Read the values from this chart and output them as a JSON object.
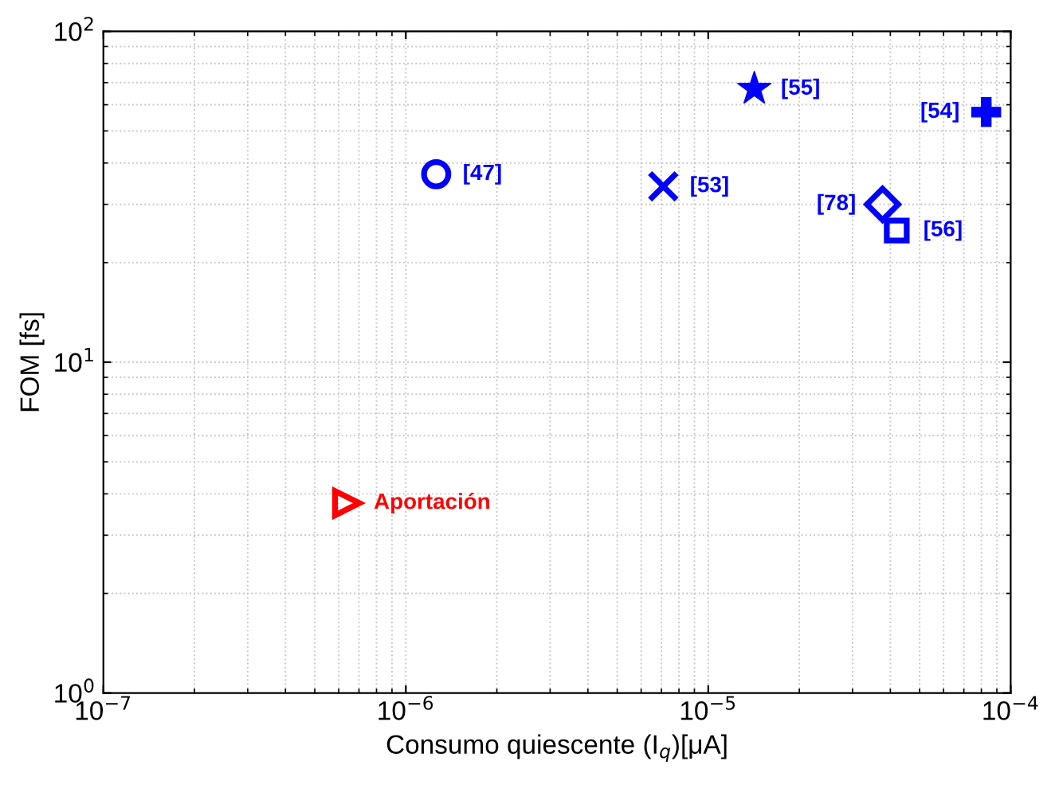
{
  "chart_data": {
    "type": "scatter",
    "xlabel": "Consumo quiescente (I$_{q}$)[μA]",
    "ylabel": "FOM [fs]",
    "log": "xy",
    "grid": true,
    "xlim": [
      1e-07,
      0.0001
    ],
    "xticks": [
      {
        "value": 1e-07,
        "label": "10$^{−7}$"
      },
      {
        "value": 1e-06,
        "label": "10$^{−6}$"
      },
      {
        "value": 1e-05,
        "label": "10$^{−5}$"
      },
      {
        "value": 0.0001,
        "label": "10$^{−4}$"
      }
    ],
    "ylim": [
      1,
      100
    ],
    "yticks": [
      {
        "value": 1,
        "label": "10$^{0}$"
      },
      {
        "value": 10,
        "label": "10$^{1}$"
      },
      {
        "value": 100,
        "label": "10$^{2}$"
      }
    ],
    "series": [
      {
        "name": "[47]",
        "color": "#0000ff",
        "marker": "circle",
        "x": [
          1.26e-06
        ],
        "values": [
          37
        ]
      },
      {
        "name": "[53]",
        "color": "#0000ff",
        "marker": "cross",
        "x": [
          7.1e-06
        ],
        "values": [
          34
        ]
      },
      {
        "name": "[55]",
        "color": "#0000ff",
        "marker": "star",
        "x": [
          1.42e-05
        ],
        "values": [
          67
        ]
      },
      {
        "name": "[54]",
        "color": "#0000ff",
        "x": [
          8.3e-05
        ],
        "values": [
          57
        ]
      },
      {
        "name": "[78]",
        "color": "#0000ff",
        "marker": "diamond",
        "x": [
          3.77e-05
        ],
        "values": [
          30
        ]
      },
      {
        "name": "[56]",
        "color": "#0000ff",
        "marker": "square",
        "x": [
          4.2e-05
        ],
        "values": [
          25
        ]
      },
      {
        "name": "Aportación",
        "color": "#ff0000",
        "marker": "triangle",
        "x": [
          6.4e-07
        ],
        "values": [
          3.75
        ]
      }
    ]
  }
}
